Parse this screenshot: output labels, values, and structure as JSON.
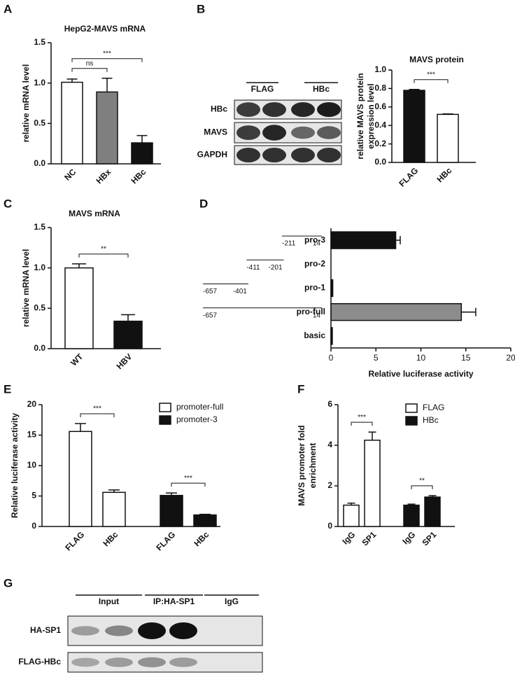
{
  "chart_data": [
    {
      "type": "bar",
      "label": "A",
      "title": "HepG2-MAVS mRNA",
      "ylabel": [
        "relative mRNA level"
      ],
      "categories": [
        "NC",
        "HBx",
        "HBc"
      ],
      "values": [
        1.01,
        0.89,
        0.26
      ],
      "errors": [
        0.04,
        0.17,
        0.09
      ],
      "colors": [
        "#ffffff",
        "#7f7f7f",
        "#111111"
      ],
      "ylim": [
        0,
        1.5
      ],
      "yticks": [
        {
          "value": 0,
          "label": "0.0"
        },
        0.5,
        {
          "value": 1,
          "label": "1.0"
        },
        1.5
      ],
      "annotations": [
        {
          "text": "ns",
          "between": [
            0,
            1
          ]
        },
        {
          "text": "***",
          "between": [
            0,
            2
          ]
        }
      ]
    },
    {
      "type": "bar",
      "label": "B",
      "title": "MAVS protein",
      "ylabel": [
        "relative MAVS protein",
        "expression level"
      ],
      "categories": [
        "FLAG",
        "HBc"
      ],
      "values": [
        0.78,
        0.52
      ],
      "errors": [
        0.01,
        0.005
      ],
      "colors": [
        "#111111",
        "#ffffff"
      ],
      "ylim": [
        0,
        1.0
      ],
      "yticks": [
        {
          "value": 0,
          "label": "0.0"
        },
        0.2,
        0.4,
        0.6,
        0.8,
        {
          "value": 1,
          "label": "1.0"
        }
      ],
      "annotations": [
        {
          "text": "***",
          "between": [
            0,
            1
          ]
        }
      ]
    },
    {
      "type": "bar",
      "label": "C",
      "title": "MAVS mRNA",
      "ylabel": [
        "relative mRNA level"
      ],
      "categories": [
        "WT",
        "HBV"
      ],
      "values": [
        1.0,
        0.34
      ],
      "errors": [
        0.05,
        0.08
      ],
      "colors": [
        "#ffffff",
        "#111111"
      ],
      "ylim": [
        0,
        1.5
      ],
      "yticks": [
        {
          "value": 0,
          "label": "0.0"
        },
        0.5,
        {
          "value": 1,
          "label": "1.0"
        },
        1.5
      ],
      "annotations": [
        {
          "text": "**",
          "between": [
            0,
            1
          ]
        }
      ]
    },
    {
      "type": "barh",
      "label": "D",
      "xlabel": "Relative luciferase activity",
      "categories": [
        "pro-3",
        "pro-2",
        "pro-1",
        "pro-full",
        "basic"
      ],
      "values": [
        7.2,
        0,
        0.2,
        14.5,
        0.15
      ],
      "errors": [
        0.5,
        0,
        0,
        1.6,
        0
      ],
      "colors": [
        "#111111",
        "#111111",
        "#111111",
        "#8c8c8c",
        "#111111"
      ],
      "constructs": [
        {
          "start": -211,
          "end": 14
        },
        {
          "start": -411,
          "end": -201
        },
        {
          "start": -657,
          "end": -401
        },
        {
          "start": -657,
          "end": 14
        },
        null
      ],
      "xlim": [
        0,
        20
      ],
      "xticks": [
        0,
        5,
        10,
        15,
        20
      ]
    },
    {
      "type": "bar",
      "label": "E",
      "ylabel": [
        "Relative luciferase activity"
      ],
      "series": [
        {
          "name": "promoter-full",
          "color": "#ffffff",
          "categories": [
            "FLAG",
            "HBc"
          ],
          "values": [
            15.6,
            5.6
          ],
          "errors": [
            1.3,
            0.4
          ]
        },
        {
          "name": "promoter-3",
          "color": "#111111",
          "categories": [
            "FLAG",
            "HBc"
          ],
          "values": [
            5.1,
            1.9
          ],
          "errors": [
            0.4,
            0.1
          ]
        }
      ],
      "ylim": [
        0,
        20
      ],
      "yticks": [
        0,
        5,
        10,
        15,
        20
      ],
      "annotations": [
        {
          "text": "***",
          "between": [
            0,
            1
          ]
        },
        {
          "text": "***",
          "between": [
            2,
            3
          ]
        }
      ]
    },
    {
      "type": "bar",
      "label": "F",
      "ylabel": [
        "MAVS promoter fold",
        "enrichment"
      ],
      "series": [
        {
          "name": "FLAG",
          "color": "#ffffff",
          "categories": [
            "IgG",
            "SP1"
          ],
          "values": [
            1.05,
            4.25
          ],
          "errors": [
            0.1,
            0.4
          ]
        },
        {
          "name": "HBc",
          "color": "#111111",
          "categories": [
            "IgG",
            "SP1"
          ],
          "values": [
            1.05,
            1.45
          ],
          "errors": [
            0.05,
            0.07
          ]
        }
      ],
      "ylim": [
        0,
        6
      ],
      "yticks": [
        0,
        2,
        4,
        6
      ],
      "annotations": [
        {
          "text": "***",
          "between": [
            0,
            1
          ]
        },
        {
          "text": "**",
          "between": [
            2,
            3
          ]
        }
      ]
    }
  ],
  "blots": [
    {
      "label": "B",
      "groups": [
        "FLAG",
        "HBc"
      ],
      "rows": [
        "HBc",
        "MAVS",
        "GAPDH"
      ]
    },
    {
      "label": "G",
      "groups": [
        "Input",
        "IP:HA-SP1",
        "IgG"
      ],
      "rows": [
        "HA-SP1",
        "FLAG-HBc"
      ]
    }
  ]
}
